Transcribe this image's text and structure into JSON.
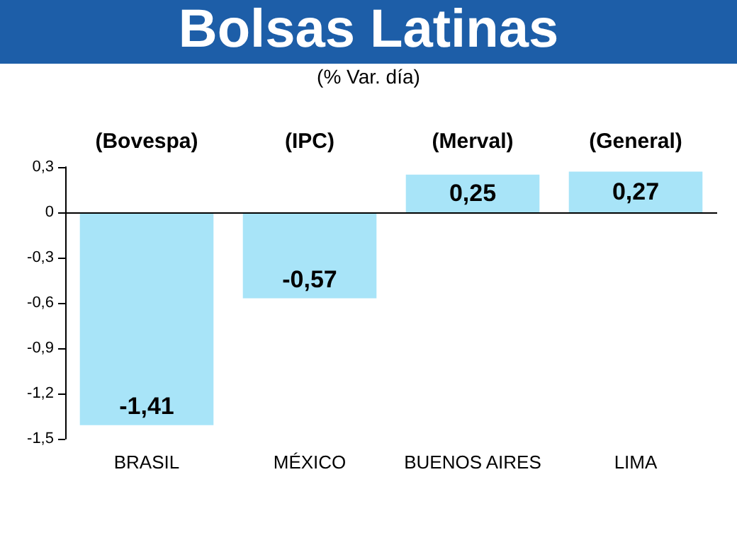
{
  "chart_data": {
    "type": "bar",
    "title": "Bolsas Latinas",
    "subtitle": "(% Var. día)",
    "categories": [
      "BRASIL",
      "MÉXICO",
      "BUENOS AIRES",
      "LIMA"
    ],
    "values": [
      -1.41,
      -0.57,
      0.25,
      0.27
    ],
    "value_labels": [
      "-1,41",
      "-0,57",
      "0,25",
      "0,27"
    ],
    "color": "#a8e4f8",
    "ylim": [
      -1.5,
      0.3
    ],
    "yticks": [
      {
        "value": 0.3,
        "label": "0,3"
      },
      {
        "value": 0,
        "label": "0"
      },
      {
        "value": -0.3,
        "label": "-0,3"
      },
      {
        "value": -0.6,
        "label": "-0,6"
      },
      {
        "value": -0.9,
        "label": "-0,9"
      },
      {
        "value": -1.2,
        "label": "-1,2"
      },
      {
        "value": -1.5,
        "label": "-1,5"
      }
    ],
    "annotations": [
      "(Bovespa)",
      "(IPC)",
      "(Merval)",
      "(General)"
    ],
    "ref_lines": [
      {
        "axis": "y",
        "value": 0,
        "color": "#000000"
      }
    ],
    "grid": false
  }
}
